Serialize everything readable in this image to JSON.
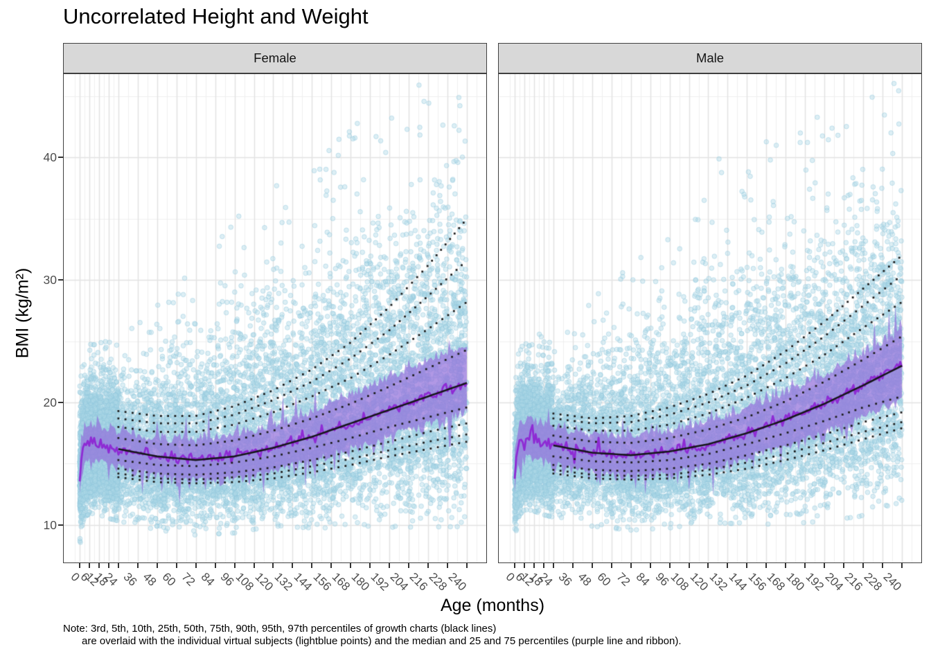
{
  "title": "Uncorrelated Height and Weight",
  "axes": {
    "x_label": "Age (months)",
    "y_label": "BMI (kg/m²)",
    "x_ticks": [
      0,
      6,
      12,
      18,
      24,
      36,
      48,
      60,
      72,
      84,
      96,
      108,
      120,
      132,
      144,
      156,
      168,
      180,
      192,
      204,
      216,
      228,
      240
    ],
    "y_ticks": [
      40,
      30,
      20,
      10
    ],
    "x_grid_major": [
      0,
      6,
      12,
      18,
      24,
      36,
      48,
      60,
      72,
      84,
      96,
      108,
      120,
      132,
      144,
      156,
      168,
      180,
      192,
      204,
      216,
      228,
      240,
      252
    ],
    "x_grid_minor": [
      -3,
      3,
      9,
      15,
      21,
      30,
      42,
      54,
      66,
      78,
      90,
      102,
      114,
      126,
      138,
      150,
      162,
      174,
      186,
      198,
      210,
      222,
      234,
      246
    ],
    "y_grid_major": [
      10,
      20,
      30,
      40
    ],
    "y_grid_minor": [
      15,
      25,
      35,
      45
    ],
    "x_domain": [
      -10.3,
      252
    ],
    "y_domain": [
      6.9,
      46.87
    ]
  },
  "note": {
    "line1": "Note: 3rd, 5th, 10th, 25th, 50th, 75th, 90th, 95th, 97th percentiles of growth charts (black lines)",
    "line2": "are overlaid with the individual virtual subjects (lightblue points) and the median and 25 and 75 percentiles (purple line and ribbon)."
  },
  "colors": {
    "point": "#ADD8E6",
    "point_fill_rgba": "rgba(173,216,230,0.42)",
    "point_stroke_rgba": "rgba(141,198,220,0.45)",
    "ribbon": "#9370DB",
    "median_line": "#8E2BD4",
    "growth_median_line": "#17171C",
    "dotted_percentile": "#1F1F1F",
    "strip_bg": "#D8D8D8",
    "strip_border": "#3F3F3F",
    "panel_border": "#3F3F3F",
    "grid_major": "#E2E2E2",
    "grid_minor": "#EFEFEF",
    "tick_text": "#4D4D4D",
    "tick_mark": "#333333",
    "text": "#000000"
  },
  "chart_data": {
    "type": "scatter",
    "title": "Uncorrelated Height and Weight",
    "xlabel": "Age (months)",
    "ylabel": "BMI (kg/m²)",
    "xlim": [
      -10.3,
      252
    ],
    "ylim": [
      6.9,
      46.87
    ],
    "grid": true,
    "legend": "none",
    "facets": [
      {
        "label": "Female",
        "seed": 101,
        "growth_percentiles": {
          "ages": [
            24,
            48,
            72,
            96,
            120,
            144,
            168,
            192,
            216,
            240
          ],
          "p97": [
            19.3,
            18.9,
            18.9,
            19.7,
            21.0,
            22.7,
            24.9,
            27.8,
            31.2,
            35.0
          ],
          "p95": [
            18.7,
            18.3,
            18.3,
            19.0,
            20.2,
            21.7,
            23.6,
            25.9,
            28.7,
            31.6
          ],
          "p90": [
            18.0,
            17.6,
            17.6,
            18.2,
            19.2,
            20.5,
            22.0,
            23.9,
            26.0,
            28.2
          ],
          "p75": [
            17.1,
            16.6,
            16.5,
            16.9,
            17.7,
            18.7,
            19.9,
            21.3,
            22.8,
            24.3
          ],
          "p50": [
            16.2,
            15.6,
            15.3,
            15.6,
            16.3,
            17.2,
            18.3,
            19.4,
            20.5,
            21.6
          ],
          "p25": [
            15.3,
            14.9,
            14.8,
            15.1,
            15.6,
            16.3,
            17.1,
            18.0,
            18.8,
            19.6
          ],
          "p10": [
            14.6,
            14.2,
            14.1,
            14.3,
            14.7,
            15.3,
            16.0,
            16.8,
            17.6,
            18.3
          ],
          "p5": [
            14.2,
            13.8,
            13.7,
            13.9,
            14.2,
            14.8,
            15.4,
            16.1,
            16.8,
            17.4
          ],
          "p3": [
            13.9,
            13.5,
            13.4,
            13.5,
            13.8,
            14.3,
            14.9,
            15.6,
            16.2,
            16.8
          ]
        },
        "subject_median": {
          "ages": [
            0,
            1,
            2,
            3,
            6,
            9,
            12,
            18,
            24,
            48,
            72,
            96,
            120,
            144,
            168,
            192,
            216,
            240
          ],
          "values": [
            13.8,
            15.3,
            16.1,
            16.5,
            16.8,
            16.8,
            16.7,
            16.4,
            16.2,
            15.6,
            15.3,
            15.6,
            16.3,
            17.2,
            18.3,
            19.4,
            20.5,
            21.6
          ]
        },
        "subject_iqr_ribbon": {
          "ages": [
            0,
            24,
            120,
            240
          ],
          "upper_offset": [
            1.1,
            1.05,
            1.5,
            2.9
          ],
          "lower_offset": [
            1.2,
            1.15,
            1.5,
            2.0
          ]
        },
        "point_cloud": {
          "ages": [
            0,
            24,
            120,
            240
          ],
          "sd_up": [
            1.9,
            2.5,
            5.8,
            6.9
          ],
          "sd_down": [
            2.3,
            2.3,
            2.5,
            4.6
          ],
          "n_main": 9000,
          "n_infant": 1900,
          "n_newborn": 900
        }
      },
      {
        "label": "Male",
        "seed": 202,
        "growth_percentiles": {
          "ages": [
            24,
            48,
            72,
            96,
            120,
            144,
            168,
            192,
            216,
            240
          ],
          "p97": [
            19.1,
            18.7,
            18.9,
            19.6,
            20.7,
            22.2,
            24.2,
            26.6,
            29.3,
            32.0
          ],
          "p95": [
            18.7,
            18.3,
            18.4,
            19.0,
            20.0,
            21.4,
            23.2,
            25.4,
            27.9,
            30.4
          ],
          "p90": [
            18.1,
            17.7,
            17.7,
            18.2,
            19.1,
            20.4,
            22.0,
            23.9,
            26.1,
            28.2
          ],
          "p75": [
            17.3,
            16.8,
            16.7,
            17.1,
            17.8,
            18.8,
            20.1,
            21.7,
            23.5,
            25.4
          ],
          "p50": [
            16.5,
            15.9,
            15.7,
            16.0,
            16.6,
            17.5,
            18.6,
            19.9,
            21.4,
            23.0
          ],
          "p25": [
            15.6,
            15.2,
            15.1,
            15.3,
            15.8,
            16.6,
            17.5,
            18.5,
            19.6,
            20.5
          ],
          "p10": [
            14.9,
            14.5,
            14.4,
            14.6,
            15.0,
            15.7,
            16.5,
            17.4,
            18.4,
            19.2
          ],
          "p5": [
            14.5,
            14.1,
            14.0,
            14.1,
            14.5,
            15.1,
            15.8,
            16.7,
            17.6,
            18.4
          ],
          "p3": [
            14.2,
            13.8,
            13.7,
            13.8,
            14.1,
            14.6,
            15.3,
            16.1,
            17.0,
            17.9
          ]
        },
        "subject_median": {
          "ages": [
            0,
            1,
            2,
            3,
            6,
            9,
            12,
            18,
            24,
            48,
            72,
            96,
            120,
            144,
            168,
            192,
            216,
            240
          ],
          "values": [
            14.0,
            15.5,
            16.3,
            16.7,
            17.1,
            17.1,
            17.0,
            16.7,
            16.5,
            15.9,
            15.7,
            16.0,
            16.6,
            17.5,
            18.6,
            19.9,
            21.4,
            23.0
          ]
        },
        "subject_iqr_ribbon": {
          "ages": [
            0,
            24,
            120,
            240
          ],
          "upper_offset": [
            1.1,
            1.05,
            1.5,
            2.5
          ],
          "lower_offset": [
            1.2,
            1.15,
            1.5,
            2.4
          ]
        },
        "point_cloud": {
          "ages": [
            0,
            24,
            120,
            240
          ],
          "sd_up": [
            1.9,
            2.5,
            5.9,
            6.3
          ],
          "sd_down": [
            2.3,
            2.3,
            2.5,
            4.6
          ],
          "n_main": 9000,
          "n_infant": 1900,
          "n_newborn": 900
        }
      }
    ],
    "dotted_percentile_lines": [
      "p97",
      "p95",
      "p90",
      "p75",
      "p25",
      "p10",
      "p5",
      "p3"
    ],
    "solid_percentile_line": "p50"
  }
}
